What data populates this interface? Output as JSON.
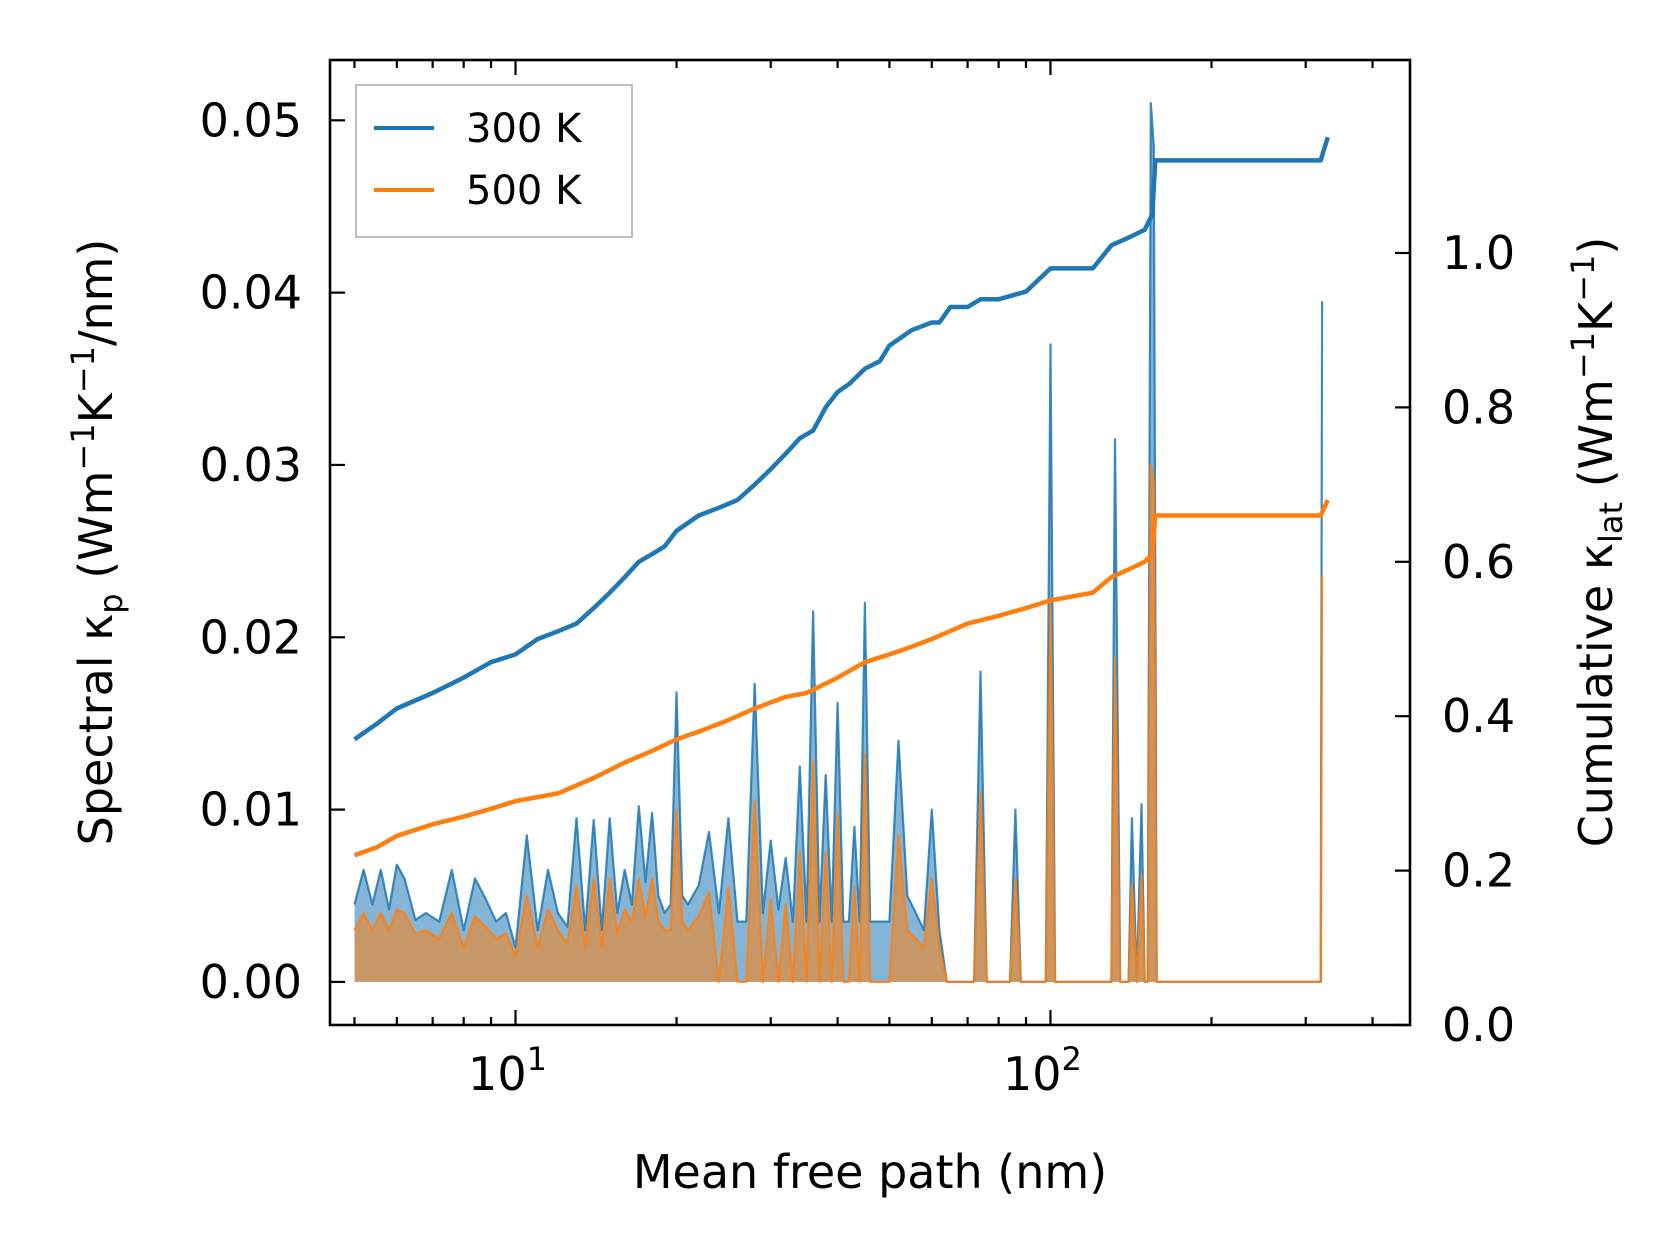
{
  "chart_data": {
    "type": "line",
    "x_scale": "log",
    "xlabel": "Mean free path (nm)",
    "ylabel_left": "Spectral κp (Wm⁻¹K⁻¹/nm)",
    "ylabel_right": "Cumulative κlat (Wm⁻¹K⁻¹)",
    "xlim": [
      4.5,
      470
    ],
    "ylim_left": [
      -0.0025,
      0.0535
    ],
    "ylim_right": [
      0.0,
      1.25
    ],
    "x_major_ticks": [
      10,
      100
    ],
    "x_tick_labels": [
      {
        "base": "10",
        "exp": "1"
      },
      {
        "base": "10",
        "exp": "2"
      }
    ],
    "y_left_ticks": [
      0.0,
      0.01,
      0.02,
      0.03,
      0.04,
      0.05
    ],
    "y_left_tick_labels": [
      "0.00",
      "0.01",
      "0.02",
      "0.03",
      "0.04",
      "0.05"
    ],
    "y_right_ticks": [
      0.0,
      0.2,
      0.4,
      0.6,
      0.8,
      1.0
    ],
    "y_right_tick_labels": [
      "0.0",
      "0.2",
      "0.4",
      "0.6",
      "0.8",
      "1.0"
    ],
    "legend": {
      "location": "upper-left",
      "entries": [
        "300 K",
        "500 K"
      ]
    },
    "series": [
      {
        "name": "300 K",
        "color": "#1f77b4",
        "cumulative": {
          "x": [
            5.0,
            5.5,
            6.0,
            7.0,
            8.0,
            9.0,
            10.0,
            11.0,
            12.0,
            13.0,
            14.0,
            15.0,
            16.0,
            17.0,
            18.0,
            19.0,
            20.0,
            22.0,
            24.0,
            26.0,
            28.0,
            30.0,
            32.0,
            34.0,
            36.0,
            38.0,
            40.0,
            42.0,
            45.0,
            48.0,
            50.0,
            55.0,
            60.0,
            62.0,
            65.0,
            70.0,
            74.0,
            80.0,
            90.0,
            100.0,
            120.0,
            130.0,
            140.0,
            150.0,
            155.0,
            157.0,
            160.0,
            320.0,
            330.0
          ],
          "y": [
            0.37,
            0.39,
            0.41,
            0.43,
            0.45,
            0.47,
            0.48,
            0.5,
            0.51,
            0.52,
            0.54,
            0.56,
            0.58,
            0.6,
            0.61,
            0.62,
            0.64,
            0.66,
            0.67,
            0.68,
            0.7,
            0.72,
            0.74,
            0.76,
            0.77,
            0.8,
            0.82,
            0.83,
            0.85,
            0.86,
            0.88,
            0.9,
            0.91,
            0.91,
            0.93,
            0.93,
            0.94,
            0.94,
            0.95,
            0.98,
            0.98,
            1.01,
            1.02,
            1.03,
            1.05,
            1.12,
            1.12,
            1.12,
            1.15
          ]
        },
        "spectral": {
          "x": [
            5.0,
            5.2,
            5.4,
            5.6,
            5.8,
            6.0,
            6.2,
            6.5,
            6.8,
            7.2,
            7.6,
            8.0,
            8.4,
            8.8,
            9.2,
            9.6,
            10.0,
            10.5,
            11.0,
            11.5,
            12.0,
            12.5,
            13.0,
            13.5,
            14.0,
            14.5,
            15.0,
            15.5,
            16.0,
            16.5,
            17.0,
            17.5,
            18.0,
            18.5,
            19.0,
            19.5,
            20.0,
            20.5,
            21.0,
            22.0,
            23.0,
            24.0,
            25.0,
            26.0,
            27.0,
            28.0,
            29.0,
            30.0,
            31.0,
            32.0,
            33.0,
            34.0,
            35.0,
            36.0,
            37.0,
            38.0,
            39.0,
            40.0,
            41.0,
            42.0,
            43.0,
            44.0,
            45.0,
            46.0,
            47.0,
            48.0,
            49.0,
            50.0,
            52.0,
            54.0,
            56.0,
            58.0,
            60.0,
            62.0,
            64.0,
            66.0,
            70.0,
            72.0,
            74.0,
            76.0,
            82.0,
            84.0,
            86.0,
            88.0,
            96.0,
            98.0,
            100.0,
            102.0,
            104.0,
            125.0,
            128.0,
            130.0,
            132.0,
            135.0,
            138.0,
            140.0,
            142.0,
            145.0,
            148.0,
            150.0,
            152.0,
            154.0,
            156.0,
            158.0,
            160.0,
            162.0,
            164.0,
            318.0,
            320.0,
            322.0
          ],
          "y": [
            0.0045,
            0.0065,
            0.0045,
            0.0065,
            0.0042,
            0.0068,
            0.006,
            0.0036,
            0.004,
            0.0035,
            0.0065,
            0.003,
            0.006,
            0.0048,
            0.0035,
            0.004,
            0.002,
            0.0085,
            0.003,
            0.0065,
            0.004,
            0.0032,
            0.0095,
            0.003,
            0.0094,
            0.003,
            0.0095,
            0.004,
            0.0065,
            0.0045,
            0.0102,
            0.0058,
            0.0098,
            0.005,
            0.004,
            0.0045,
            0.0168,
            0.005,
            0.0045,
            0.0056,
            0.0087,
            0.004,
            0.0095,
            0.0035,
            0.0035,
            0.0173,
            0.004,
            0.0082,
            0.0042,
            0.0072,
            0.0035,
            0.0125,
            0.0035,
            0.0215,
            0.0035,
            0.012,
            0.0035,
            0.0162,
            0.0035,
            0.0035,
            0.009,
            0.0035,
            0.022,
            0.0035,
            0.0035,
            0.0035,
            0.0035,
            0.0035,
            0.014,
            0.005,
            0.004,
            0.003,
            0.01,
            0.003,
            0.0,
            0.0,
            0.0,
            0.0,
            0.018,
            0.0,
            0.0,
            0.0,
            0.01,
            0.0,
            0.0,
            0.0,
            0.037,
            0.0,
            0.0,
            0.0,
            0.0,
            0.0,
            0.0315,
            0.0,
            0.0,
            0.0,
            0.0095,
            0.0,
            0.0103,
            0.0,
            0.0,
            0.051,
            0.0485,
            0.0,
            0.0,
            0.0,
            0.0,
            0.0,
            0.0,
            0.0395
          ]
        }
      },
      {
        "name": "500 K",
        "color": "#ff7f0e",
        "cumulative": {
          "x": [
            5.0,
            5.5,
            6.0,
            7.0,
            8.0,
            9.0,
            10.0,
            12.0,
            14.0,
            16.0,
            18.0,
            20.0,
            22.0,
            25.0,
            28.0,
            32.0,
            35.0,
            40.0,
            45.0,
            50.0,
            55.0,
            60.0,
            70.0,
            80.0,
            90.0,
            100.0,
            120.0,
            130.0,
            140.0,
            150.0,
            155.0,
            157.0,
            160.0,
            320.0,
            330.0
          ],
          "y": [
            0.22,
            0.23,
            0.245,
            0.26,
            0.27,
            0.28,
            0.29,
            0.3,
            0.32,
            0.34,
            0.355,
            0.37,
            0.38,
            0.395,
            0.41,
            0.425,
            0.43,
            0.45,
            0.47,
            0.48,
            0.49,
            0.5,
            0.52,
            0.53,
            0.54,
            0.55,
            0.56,
            0.58,
            0.59,
            0.6,
            0.61,
            0.66,
            0.66,
            0.66,
            0.68
          ]
        },
        "spectral": {
          "x": [
            5.0,
            5.2,
            5.4,
            5.6,
            5.8,
            6.0,
            6.2,
            6.5,
            6.8,
            7.2,
            7.6,
            8.0,
            8.4,
            8.8,
            9.2,
            9.6,
            10.0,
            10.5,
            11.0,
            11.5,
            12.0,
            12.5,
            13.0,
            13.5,
            14.0,
            14.5,
            15.0,
            15.5,
            16.0,
            16.5,
            17.0,
            17.5,
            18.0,
            18.5,
            19.0,
            19.5,
            20.0,
            20.5,
            21.0,
            22.0,
            23.0,
            24.0,
            25.0,
            26.0,
            27.0,
            28.0,
            29.0,
            30.0,
            31.0,
            32.0,
            33.0,
            34.0,
            35.0,
            36.0,
            37.0,
            38.0,
            39.0,
            40.0,
            41.0,
            42.0,
            43.0,
            44.0,
            45.0,
            46.0,
            47.0,
            48.0,
            49.0,
            50.0,
            52.0,
            54.0,
            56.0,
            58.0,
            60.0,
            62.0,
            64.0,
            66.0,
            70.0,
            72.0,
            74.0,
            76.0,
            82.0,
            84.0,
            86.0,
            88.0,
            96.0,
            98.0,
            100.0,
            102.0,
            104.0,
            125.0,
            128.0,
            130.0,
            132.0,
            135.0,
            138.0,
            140.0,
            142.0,
            145.0,
            148.0,
            150.0,
            152.0,
            154.0,
            156.0,
            158.0,
            160.0,
            162.0,
            164.0,
            318.0,
            320.0,
            322.0
          ],
          "y": [
            0.003,
            0.004,
            0.003,
            0.004,
            0.003,
            0.0042,
            0.004,
            0.0028,
            0.003,
            0.0025,
            0.004,
            0.002,
            0.0038,
            0.0032,
            0.0025,
            0.0028,
            0.0015,
            0.005,
            0.002,
            0.0042,
            0.003,
            0.0022,
            0.0056,
            0.002,
            0.006,
            0.002,
            0.006,
            0.0028,
            0.0042,
            0.0035,
            0.006,
            0.0038,
            0.006,
            0.0035,
            0.003,
            0.003,
            0.01,
            0.0035,
            0.003,
            0.0038,
            0.0052,
            0.0,
            0.0055,
            0.0,
            0.0,
            0.0105,
            0.0,
            0.0048,
            0.0,
            0.0045,
            0.0,
            0.0075,
            0.0,
            0.0128,
            0.0,
            0.0075,
            0.0,
            0.0098,
            0.0,
            0.0,
            0.0055,
            0.0,
            0.0132,
            0.0,
            0.0,
            0.0,
            0.0,
            0.0,
            0.0085,
            0.003,
            0.0025,
            0.002,
            0.006,
            0.002,
            0.0,
            0.0,
            0.0,
            0.0,
            0.011,
            0.0,
            0.0,
            0.0,
            0.006,
            0.0,
            0.0,
            0.0,
            0.022,
            0.0,
            0.0,
            0.0,
            0.0,
            0.0,
            0.0188,
            0.0,
            0.0,
            0.0,
            0.0057,
            0.0,
            0.0062,
            0.0,
            0.0,
            0.03,
            0.029,
            0.0,
            0.0,
            0.0,
            0.0,
            0.0,
            0.0,
            0.0236
          ]
        }
      }
    ]
  }
}
